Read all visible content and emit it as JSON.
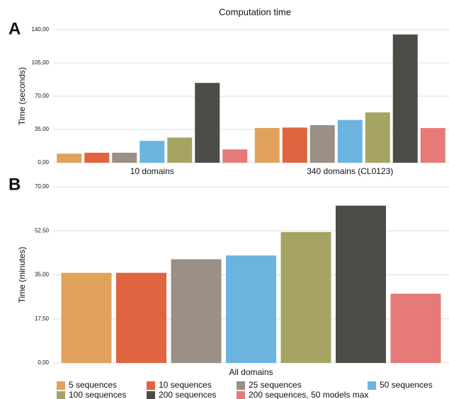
{
  "chart_data": [
    {
      "type": "bar",
      "panel": "A",
      "title": "Computation time",
      "y_label": "Time (seconds)",
      "categories": [
        "10 domains",
        "340 domains (CL0123)"
      ],
      "ylim": [
        0,
        140
      ],
      "yticks": [
        {
          "value": 0,
          "label": "0,00"
        },
        {
          "value": 35,
          "label": "35,00"
        },
        {
          "value": 70,
          "label": "70,00"
        },
        {
          "value": 105,
          "label": "105,00"
        },
        {
          "value": 140,
          "label": "140,00"
        }
      ],
      "grid": true,
      "series": [
        {
          "color": "#e1a25b",
          "values": [
            9.5,
            36.5
          ]
        },
        {
          "color": "#e0643f",
          "values": [
            10.5,
            37
          ]
        },
        {
          "color": "#9b8f86",
          "values": [
            10.5,
            39.5
          ]
        },
        {
          "color": "#6bb4e0",
          "values": [
            23,
            45
          ]
        },
        {
          "color": "#a6a463",
          "values": [
            26.5,
            53
          ]
        },
        {
          "color": "#4e4c47",
          "values": [
            84,
            135
          ]
        },
        {
          "color": "#e57a78",
          "values": [
            14,
            36.5
          ]
        }
      ]
    },
    {
      "type": "bar",
      "panel": "B",
      "y_label": "Time (minutes)",
      "categories": [
        "All domains"
      ],
      "ylim": [
        0,
        70
      ],
      "yticks": [
        {
          "value": 0,
          "label": "0,00"
        },
        {
          "value": 17.5,
          "label": "17,50"
        },
        {
          "value": 35,
          "label": "35,00"
        },
        {
          "value": 52.5,
          "label": "52,50"
        },
        {
          "value": 70,
          "label": "70,00"
        }
      ],
      "grid": true,
      "series": [
        {
          "name": "5 sequences",
          "color": "#e1a25b",
          "values": [
            35.8
          ]
        },
        {
          "name": "10 sequences",
          "color": "#e0643f",
          "values": [
            35.8
          ]
        },
        {
          "name": "25 sequences",
          "color": "#9b8f86",
          "values": [
            41.2
          ]
        },
        {
          "name": "50 sequences",
          "color": "#6bb4e0",
          "values": [
            42.7
          ]
        },
        {
          "name": "100 sequences",
          "color": "#a6a463",
          "values": [
            52
          ]
        },
        {
          "name": "200 sequences",
          "color": "#4e4c47",
          "values": [
            62.5
          ]
        },
        {
          "name": "200 sequences, 50 models max",
          "color": "#e57a78",
          "values": [
            27.5
          ]
        }
      ]
    }
  ]
}
